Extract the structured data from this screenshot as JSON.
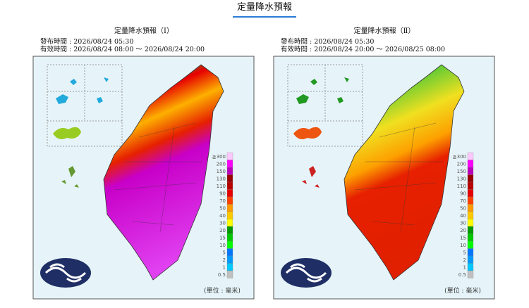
{
  "header": {
    "title": "定量降水預報"
  },
  "panels": [
    {
      "title": "定量降水預報（Ⅰ）",
      "issued": "發布時間 : 2026/08/24 05:30",
      "valid": "有效時間 : 2026/08/24 08:00 ～ 2026/08/24 20:00",
      "unit": "(單位 : 毫米)"
    },
    {
      "title": "定量降水預報（Ⅱ）",
      "issued": "發布時間 : 2026/08/24 05:30",
      "valid": "有效時間 : 2026/08/24 20:00 ～ 2026/08/25 08:00",
      "unit": "(單位 : 毫米)"
    }
  ],
  "legend": {
    "levels": [
      {
        "value": 300,
        "label": "≧300"
      },
      200,
      150,
      130,
      110,
      90,
      70,
      50,
      40,
      30,
      20,
      15,
      10,
      5,
      2,
      1,
      0.5
    ],
    "colors": [
      "#fdc8fd",
      "#fd00fd",
      "#bb00bb",
      "#9a0000",
      "#b80000",
      "#e60000",
      "#fd4000",
      "#fd9a00",
      "#fdc800",
      "#fdfd00",
      "#009900",
      "#00c800",
      "#00fd00",
      "#0077fd",
      "#009afd",
      "#00c8fd",
      "#c0c0c0"
    ]
  }
}
